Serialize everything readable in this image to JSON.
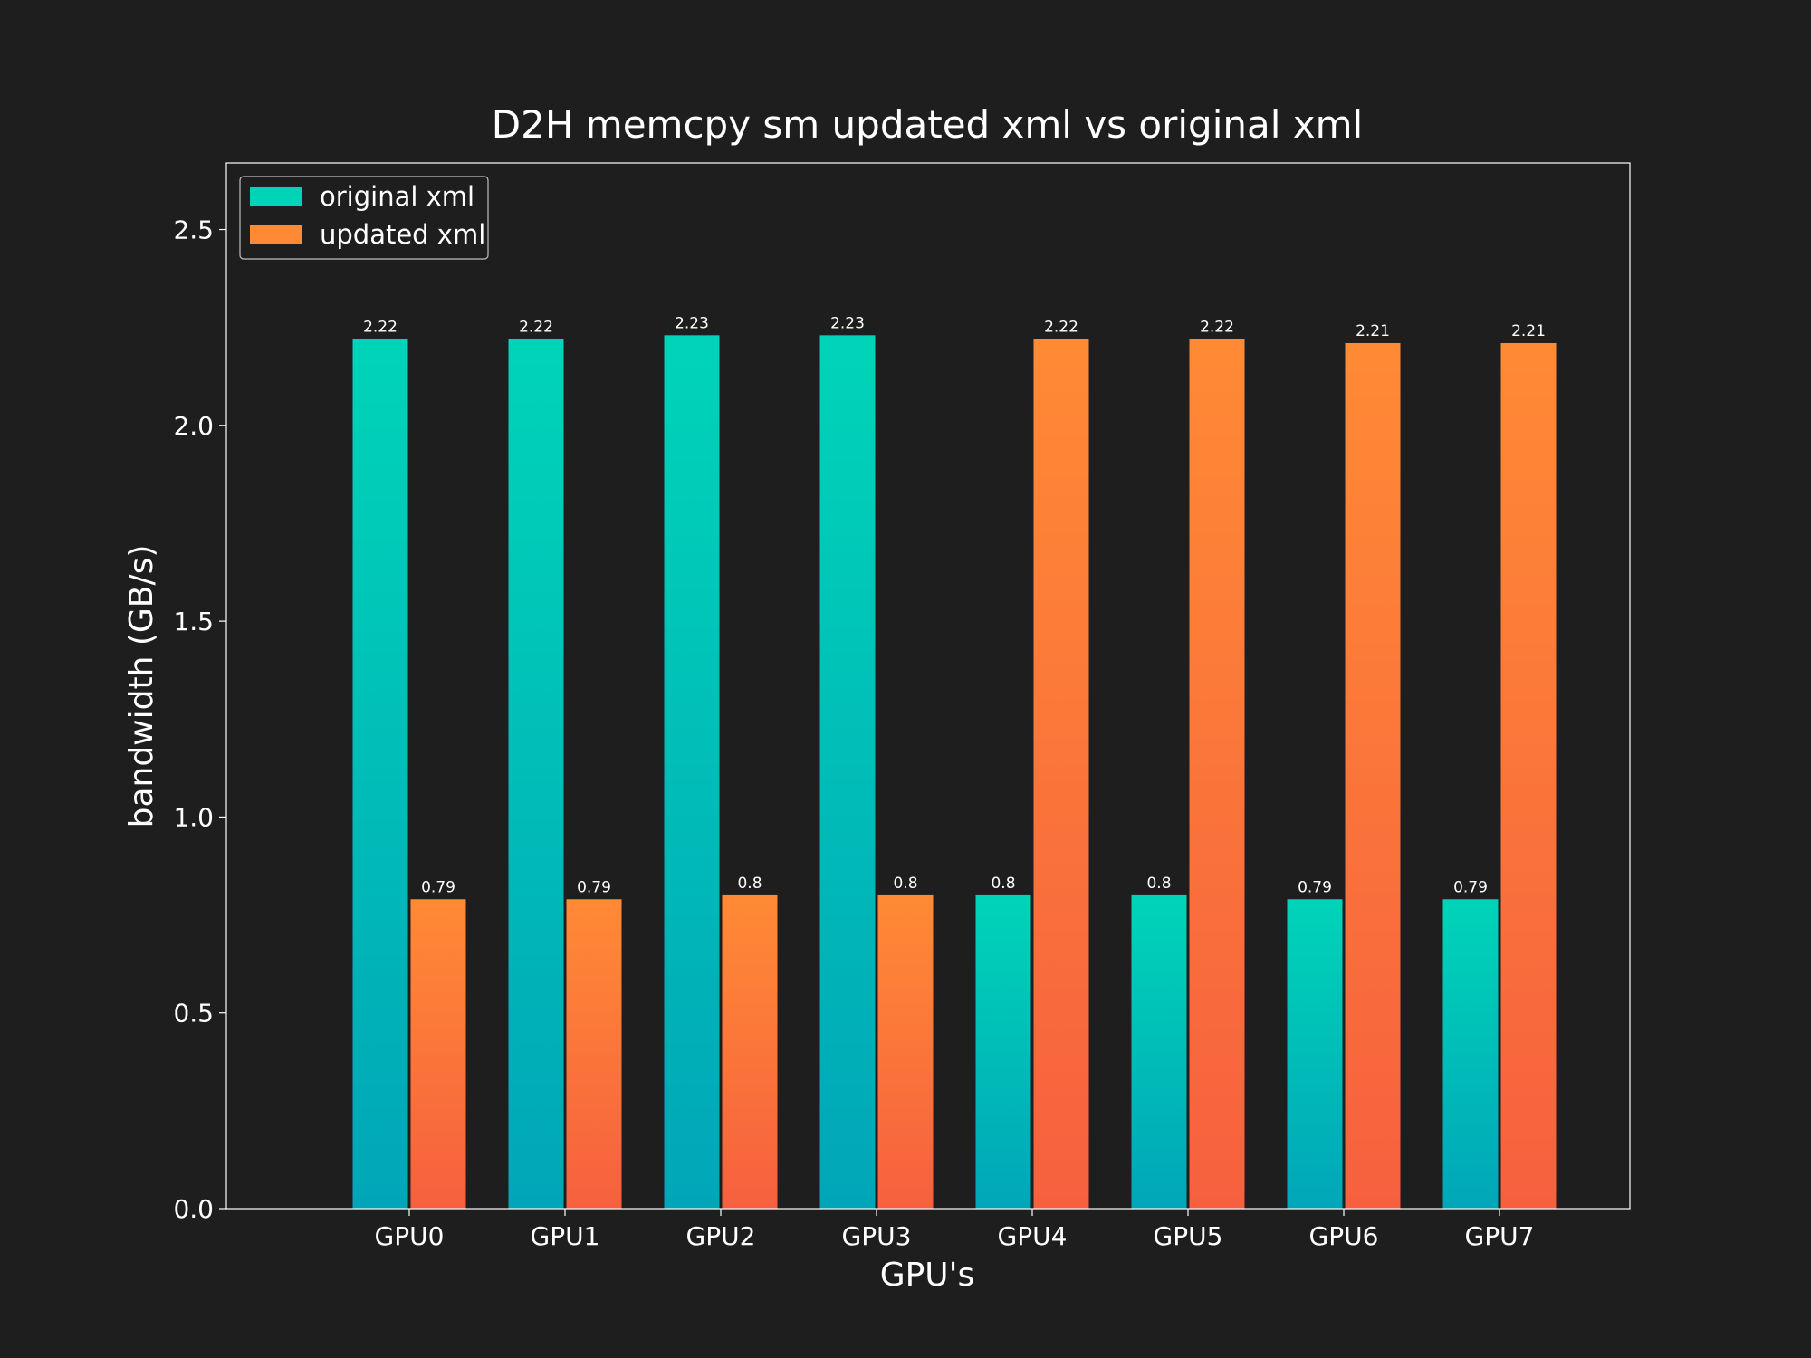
{
  "chart_data": {
    "type": "bar",
    "title": "D2H memcpy sm updated xml vs original xml",
    "xlabel": "GPU's",
    "ylabel": "bandwidth (GB/s)",
    "categories": [
      "GPU0",
      "GPU1",
      "GPU2",
      "GPU3",
      "GPU4",
      "GPU5",
      "GPU6",
      "GPU7"
    ],
    "series": [
      {
        "name": "original xml",
        "values": [
          2.22,
          2.22,
          2.23,
          2.23,
          0.8,
          0.8,
          0.79,
          0.79
        ],
        "labels": [
          "2.22",
          "2.22",
          "2.23",
          "2.23",
          "0.8",
          "0.8",
          "0.79",
          "0.79"
        ],
        "color_top": "#00d4b8",
        "color_bottom": "#00a6b8"
      },
      {
        "name": "updated xml",
        "values": [
          0.79,
          0.79,
          0.8,
          0.8,
          2.22,
          2.22,
          2.21,
          2.21
        ],
        "labels": [
          "0.79",
          "0.79",
          "0.8",
          "0.8",
          "2.22",
          "2.22",
          "2.21",
          "2.21"
        ],
        "color_top": "#ff8a35",
        "color_bottom": "#f6603f"
      }
    ],
    "ylim": [
      0,
      2.67
    ],
    "yticks": [
      "0.0",
      "0.5",
      "1.0",
      "1.5",
      "2.0",
      "2.5"
    ],
    "ytick_values": [
      0,
      0.5,
      1.0,
      1.5,
      2.0,
      2.5
    ],
    "grid": false,
    "legend_position": "top-left",
    "background_color": "#1e1e1e",
    "text_color": "#ffffff"
  }
}
